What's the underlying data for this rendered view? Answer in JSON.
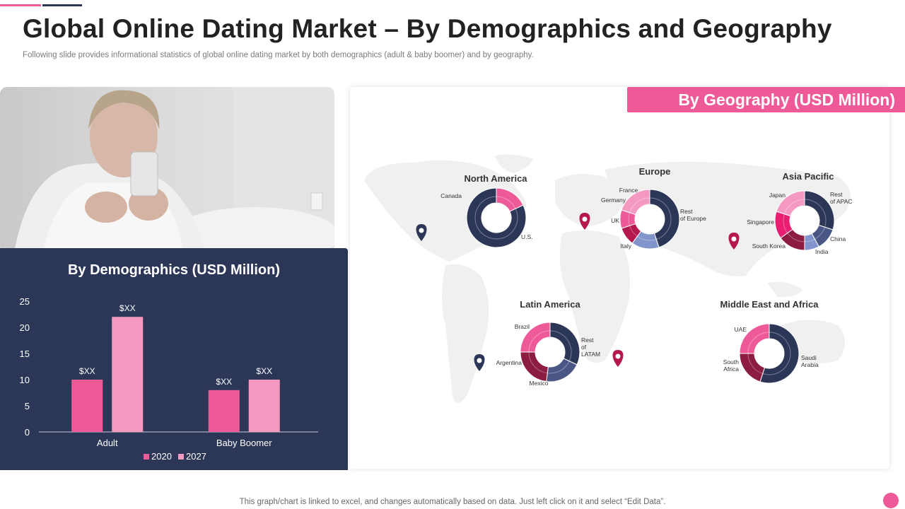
{
  "header": {
    "title": "Global Online Dating Market – By Demographics and Geography",
    "subtitle": "Following slide provides informational statistics of global online dating market by both demographics (adult & baby boomer) and by geography."
  },
  "demographics": {
    "title": "By Demographics (USD Million)"
  },
  "geography": {
    "title": "By Geography (USD Million)"
  },
  "footer": {
    "note": "This graph/chart is linked to excel,  and changes automatically based on data. Just left click on it and select “Edit Data”."
  },
  "colors": {
    "pink": "#ee5a97",
    "light_pink": "#f49ac0",
    "navy": "#2c3757",
    "slate": "#4a5784",
    "periwinkle": "#8194cc",
    "crimson": "#b5174f",
    "dark_red": "#8c1c42"
  },
  "chart_data": [
    {
      "type": "bar",
      "title": "By Demographics (USD Million)",
      "categories": [
        "Adult",
        "Baby Boomer"
      ],
      "series": [
        {
          "name": "2020",
          "values": [
            10,
            8
          ],
          "labels": [
            "$XX",
            "$XX"
          ],
          "color": "#ee5a97"
        },
        {
          "name": "2027",
          "values": [
            22,
            10
          ],
          "labels": [
            "$XX",
            "$XX"
          ],
          "color": "#f49ac0"
        }
      ],
      "ylim": [
        0,
        25
      ],
      "yticks": [
        0,
        5,
        10,
        15,
        20,
        25
      ],
      "legend": "bottom",
      "grid": false
    },
    {
      "type": "pie",
      "title": "North America",
      "labels": [
        "Canada",
        "U.S."
      ],
      "values": [
        18,
        82
      ],
      "colors": [
        "#ee5a97",
        "#2c3757"
      ]
    },
    {
      "type": "pie",
      "title": "Europe",
      "labels": [
        "Rest of Europe",
        "Italy",
        "UK",
        "Germany",
        "France"
      ],
      "values": [
        45,
        15,
        10,
        10,
        20
      ],
      "colors": [
        "#2c3757",
        "#8194cc",
        "#b5174f",
        "#ee5a97",
        "#f49ac0"
      ]
    },
    {
      "type": "pie",
      "title": "Asia Pacific",
      "labels": [
        "Rest of APAC",
        "China",
        "India",
        "South Korea",
        "Singapore",
        "Japan"
      ],
      "values": [
        30,
        12,
        8,
        15,
        15,
        20
      ],
      "colors": [
        "#2c3757",
        "#4a5784",
        "#8194cc",
        "#8c1c42",
        "#e91e73",
        "#f49ac0"
      ]
    },
    {
      "type": "pie",
      "title": "Latin America",
      "labels": [
        "Rest of LATAM",
        "Mexico",
        "Argentina",
        "Brazil"
      ],
      "values": [
        32,
        20,
        23,
        25
      ],
      "colors": [
        "#2c3757",
        "#4a5784",
        "#8c1c42",
        "#ee5a97"
      ]
    },
    {
      "type": "pie",
      "title": "Middle East and Africa",
      "labels": [
        "Saudi Arabia",
        "South Africa",
        "UAE"
      ],
      "values": [
        55,
        20,
        25
      ],
      "colors": [
        "#2c3757",
        "#8c1c42",
        "#ee5a97"
      ]
    }
  ]
}
